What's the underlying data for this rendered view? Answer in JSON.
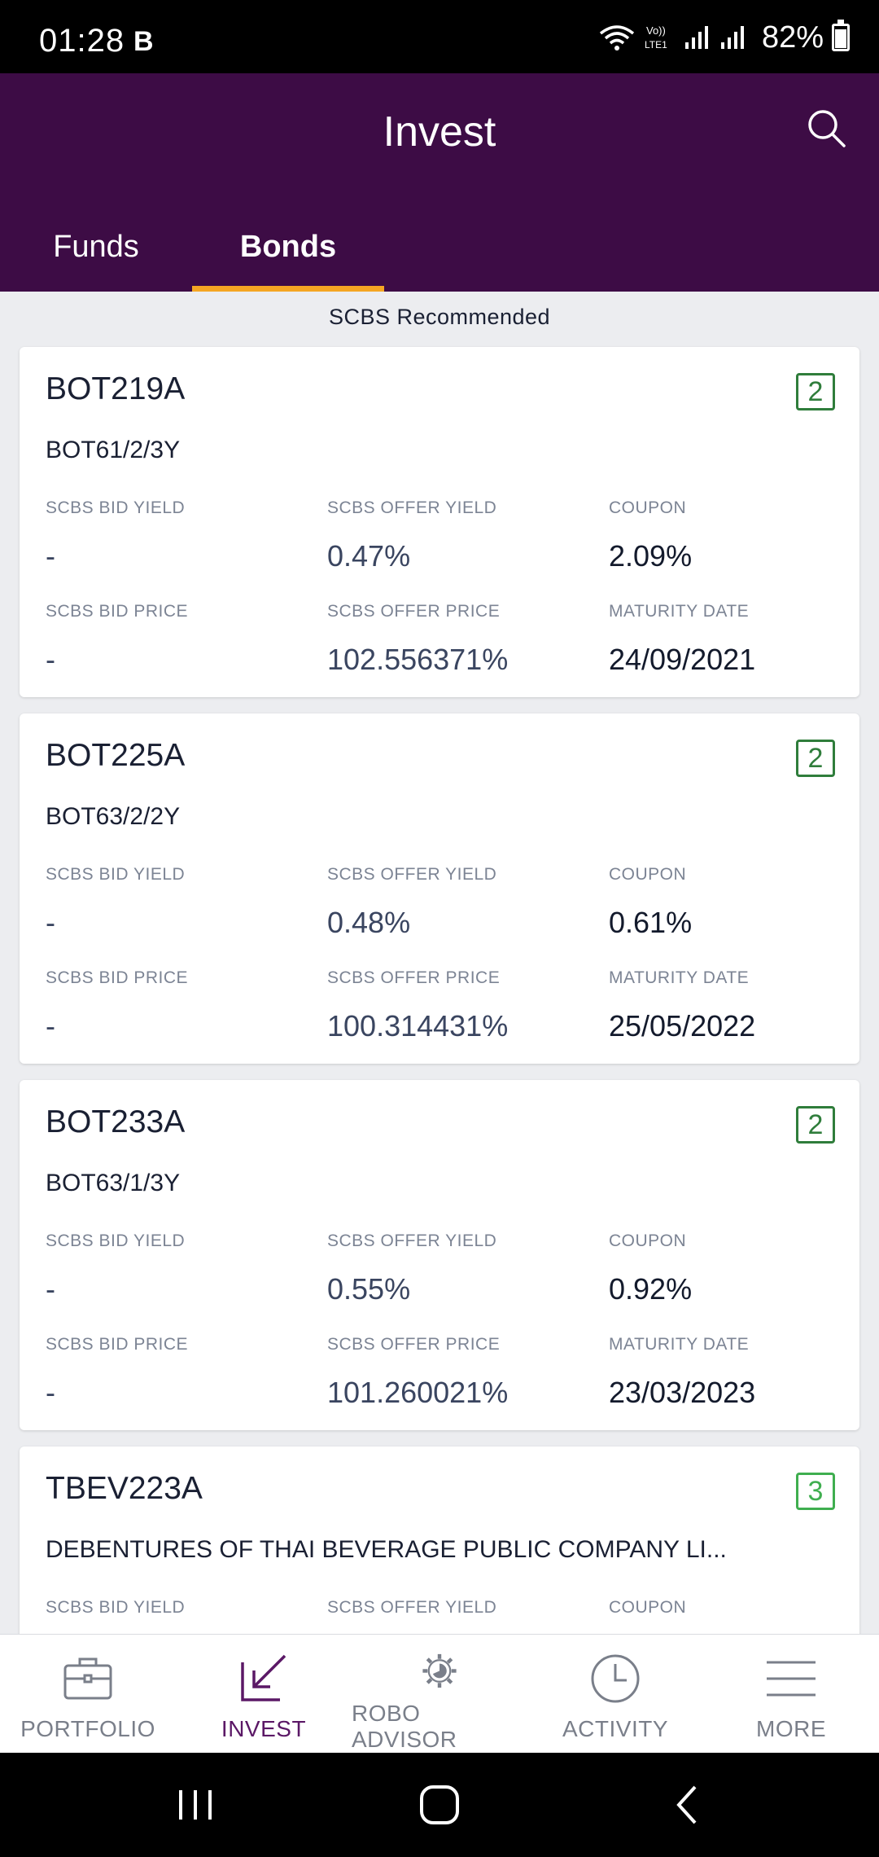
{
  "status_bar": {
    "time": "01:28",
    "notification_icon": "B",
    "battery": "82%"
  },
  "header": {
    "title": "Invest",
    "tabs": [
      {
        "label": "Funds",
        "active": false
      },
      {
        "label": "Bonds",
        "active": true
      }
    ]
  },
  "section_label": "SCBS Recommended",
  "labels": {
    "bid_yield": "SCBS BID YIELD",
    "offer_yield": "SCBS OFFER YIELD",
    "coupon": "COUPON",
    "bid_price": "SCBS BID PRICE",
    "offer_price": "SCBS OFFER PRICE",
    "maturity": "MATURITY DATE"
  },
  "bonds": [
    {
      "code": "BOT219A",
      "name": "BOT61/2/3Y",
      "risk": "2",
      "bid_yield": "-",
      "offer_yield": "0.47%",
      "coupon": "2.09%",
      "bid_price": "-",
      "offer_price": "102.556371%",
      "maturity": "24/09/2021"
    },
    {
      "code": "BOT225A",
      "name": "BOT63/2/2Y",
      "risk": "2",
      "bid_yield": "-",
      "offer_yield": "0.48%",
      "coupon": "0.61%",
      "bid_price": "-",
      "offer_price": "100.314431%",
      "maturity": "25/05/2022"
    },
    {
      "code": "BOT233A",
      "name": "BOT63/1/3Y",
      "risk": "2",
      "bid_yield": "-",
      "offer_yield": "0.55%",
      "coupon": "0.92%",
      "bid_price": "-",
      "offer_price": "101.260021%",
      "maturity": "23/03/2023"
    },
    {
      "code": "TBEV223A",
      "name": "DEBENTURES OF THAI BEVERAGE PUBLIC COMPANY LI...",
      "risk": "3"
    }
  ],
  "bottom_nav": [
    {
      "label": "PORTFOLIO",
      "icon": "briefcase-icon",
      "active": false
    },
    {
      "label": "INVEST",
      "icon": "invest-arrow-icon",
      "active": true
    },
    {
      "label": "ROBO ADVISOR",
      "icon": "robo-gear-icon",
      "active": false
    },
    {
      "label": "ACTIVITY",
      "icon": "clock-icon",
      "active": false
    },
    {
      "label": "MORE",
      "icon": "menu-icon",
      "active": false
    }
  ],
  "colors": {
    "header_bg": "#3d0c45",
    "tab_indicator": "#f5a623",
    "risk_badge": "#2f7d3b",
    "active_nav": "#5b1866"
  }
}
